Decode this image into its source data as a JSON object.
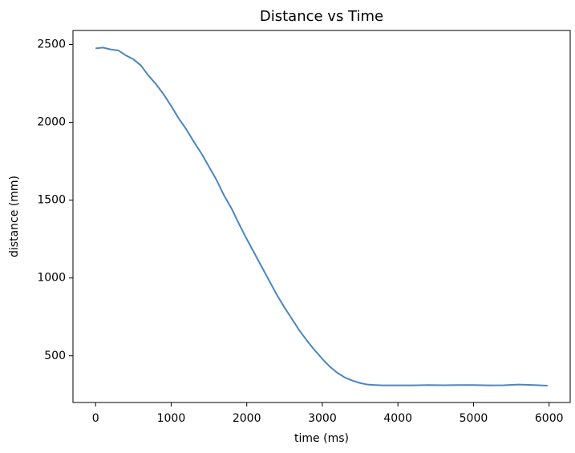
{
  "chart_data": {
    "type": "line",
    "title": "Distance vs Time",
    "x_label": "time (ms)",
    "y_label": "distance (mm)",
    "x": [
      0,
      100,
      200,
      300,
      400,
      500,
      600,
      700,
      800,
      900,
      1000,
      1100,
      1200,
      1300,
      1400,
      1500,
      1600,
      1700,
      1800,
      1900,
      2000,
      2100,
      2200,
      2300,
      2400,
      2500,
      2600,
      2700,
      2800,
      2900,
      3000,
      3100,
      3200,
      3300,
      3400,
      3500,
      3600,
      3700,
      3800,
      4000,
      4200,
      4400,
      4600,
      4800,
      5000,
      5200,
      5400,
      5600,
      5800,
      5980
    ],
    "series": [
      {
        "name": "distance",
        "color": "#4a86c0",
        "values": [
          2475,
          2480,
          2468,
          2462,
          2430,
          2405,
          2365,
          2300,
          2245,
          2180,
          2105,
          2025,
          1955,
          1875,
          1800,
          1715,
          1630,
          1530,
          1445,
          1345,
          1250,
          1160,
          1070,
          980,
          890,
          810,
          735,
          660,
          595,
          535,
          480,
          430,
          390,
          360,
          340,
          325,
          315,
          312,
          310,
          310,
          310,
          312,
          311,
          312,
          312,
          310,
          311,
          315,
          312,
          308
        ]
      }
    ],
    "xlim": [
      -299,
      6279
    ],
    "ylim": [
      200,
      2590
    ],
    "xticks": [
      0,
      1000,
      2000,
      3000,
      4000,
      5000,
      6000
    ],
    "yticks": [
      500,
      1000,
      1500,
      2000,
      2500
    ],
    "grid": false
  }
}
